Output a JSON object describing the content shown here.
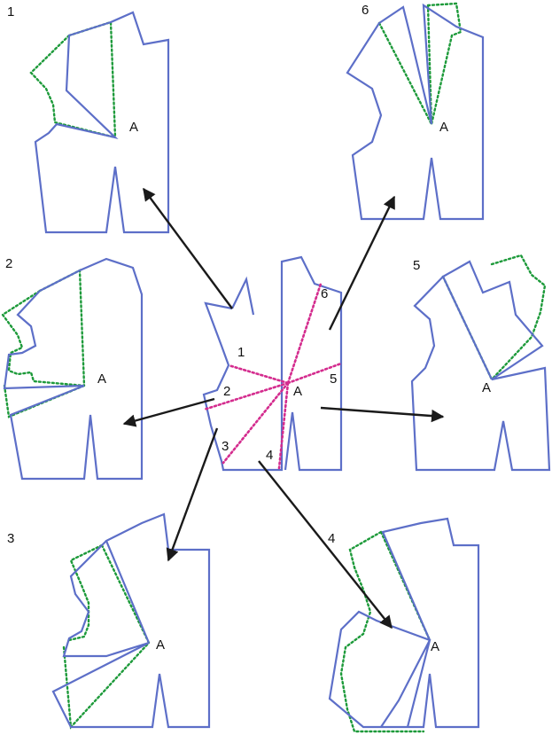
{
  "colors": {
    "pattern_line": "#5d6fc8",
    "ghost_line": "#1d9a3a",
    "slash_line": "#d42c8e",
    "arrow": "#1a1a1a",
    "label": "#111111"
  },
  "panels": {
    "p1": {
      "number": "1",
      "point": "A"
    },
    "p2": {
      "number": "2",
      "point": "A"
    },
    "p3": {
      "number": "3",
      "point": "A"
    },
    "p4": {
      "number": "4",
      "point": "A"
    },
    "p5": {
      "number": "5",
      "point": "A"
    },
    "p6": {
      "number": "6",
      "point": "A"
    }
  },
  "center": {
    "point": "A",
    "slash_labels": [
      "1",
      "2",
      "3",
      "4",
      "5",
      "6"
    ]
  }
}
